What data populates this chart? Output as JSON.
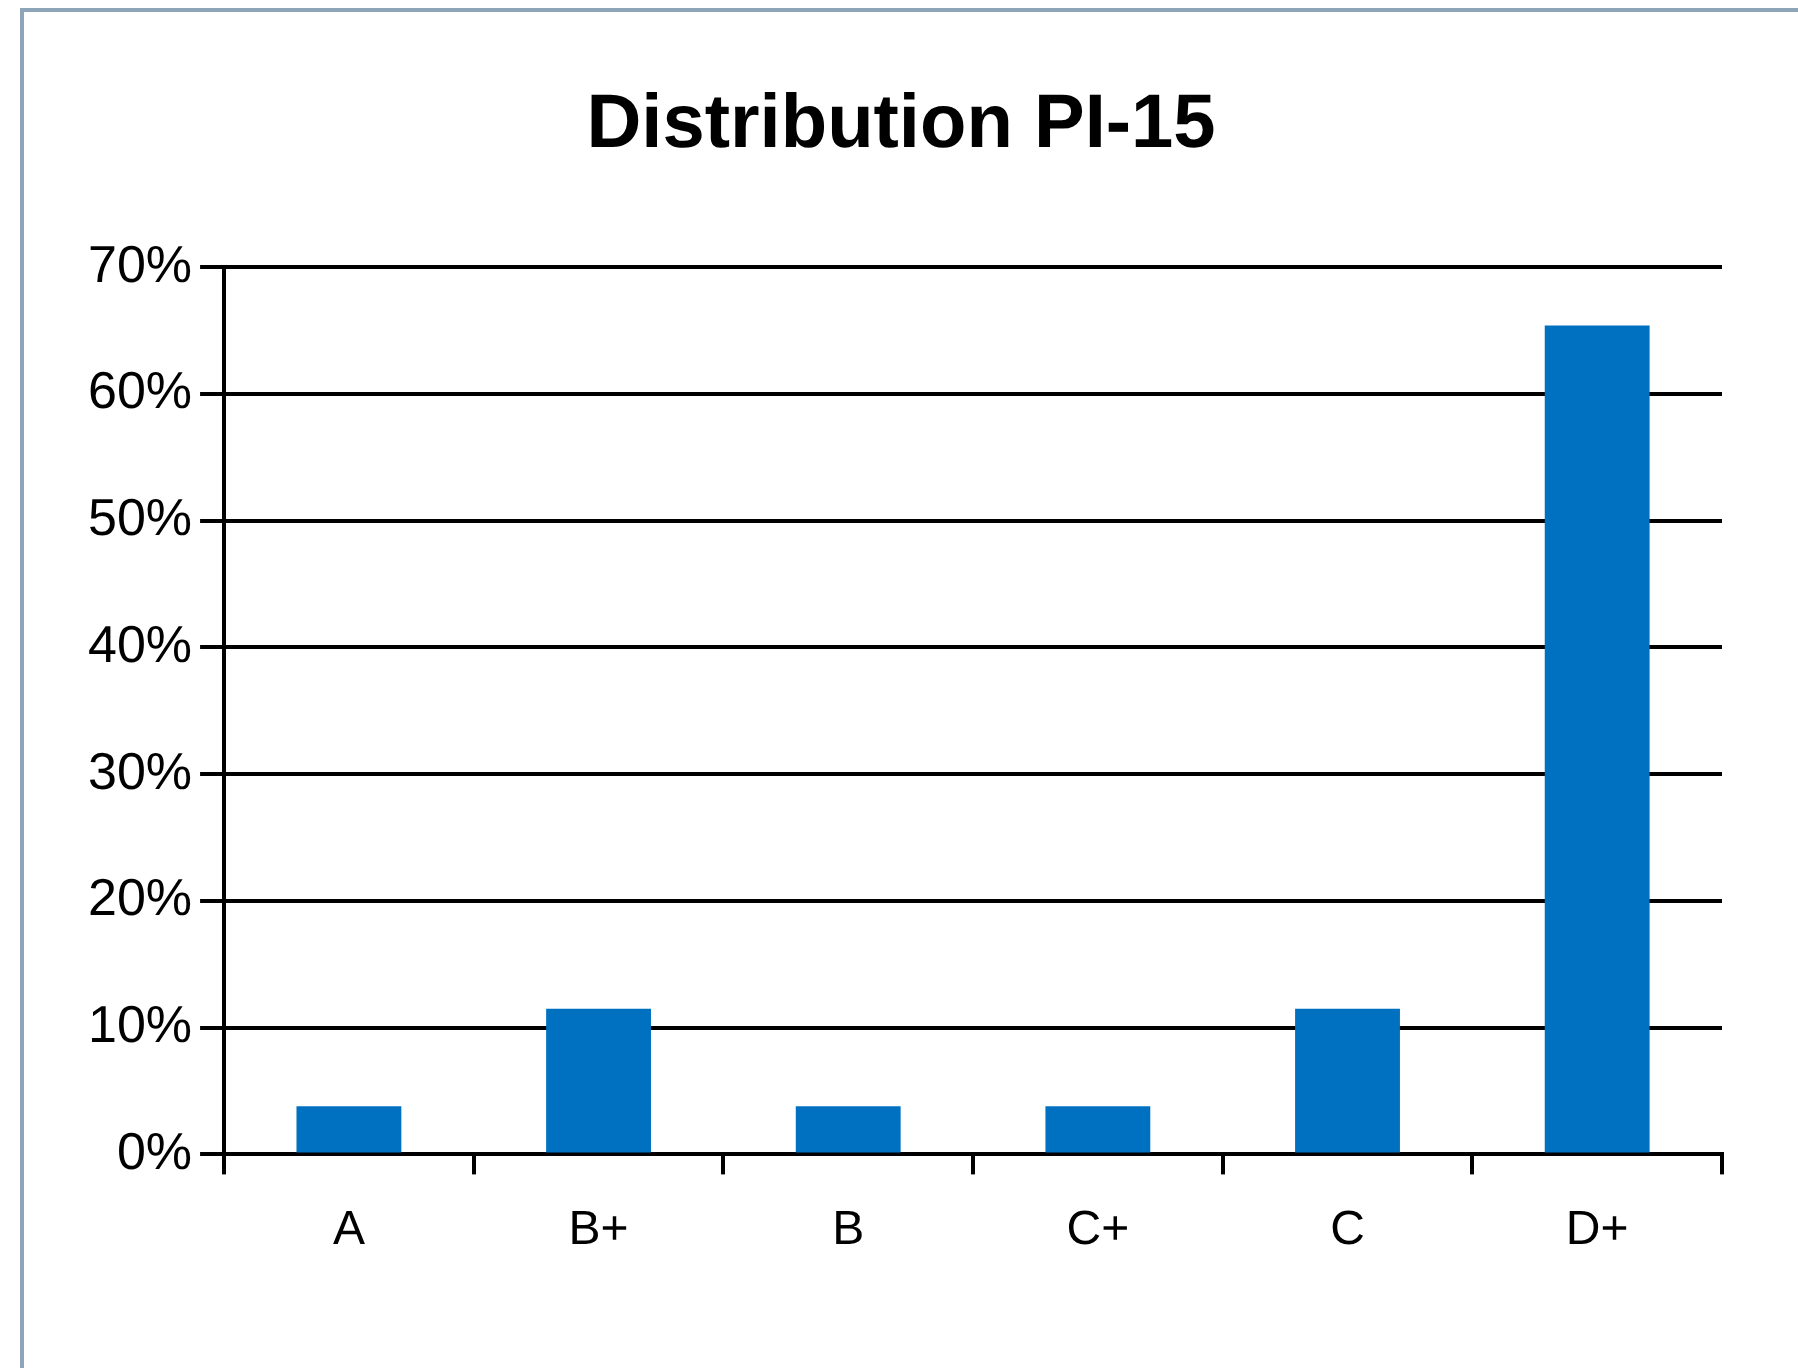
{
  "chart_data": {
    "type": "bar",
    "title": "Distribution PI-15",
    "categories": [
      "A",
      "B+",
      "B",
      "C+",
      "C",
      "D+"
    ],
    "values": [
      3.8,
      11.5,
      3.8,
      3.8,
      11.5,
      65.4
    ],
    "color": "#0070c0",
    "ylim": [
      0,
      70
    ],
    "yticks": [
      {
        "value": 0,
        "label": "0%"
      },
      {
        "value": 10,
        "label": "10%"
      },
      {
        "value": 20,
        "label": "20%"
      },
      {
        "value": 30,
        "label": "30%"
      },
      {
        "value": 40,
        "label": "40%"
      },
      {
        "value": 50,
        "label": "50%"
      },
      {
        "value": 60,
        "label": "60%"
      },
      {
        "value": 70,
        "label": "70%"
      }
    ],
    "grid": "y",
    "legend": false
  }
}
